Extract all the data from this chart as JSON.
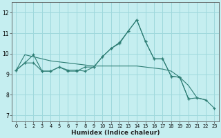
{
  "xlabel": "Humidex (Indice chaleur)",
  "bg_color": "#c5eef0",
  "grid_color": "#9ed8dc",
  "line_color": "#2d7d74",
  "ylim": [
    6.7,
    12.5
  ],
  "xlim": [
    -0.5,
    23.5
  ],
  "yticks": [
    7,
    8,
    9,
    10,
    11,
    12
  ],
  "xticks": [
    0,
    1,
    2,
    3,
    4,
    5,
    6,
    7,
    8,
    9,
    10,
    11,
    12,
    13,
    14,
    15,
    16,
    17,
    18,
    19,
    20,
    21,
    22,
    23
  ],
  "series1_x": [
    0,
    1,
    2,
    3,
    4,
    5,
    6,
    7,
    8,
    9,
    10,
    11,
    12,
    13,
    14,
    15,
    16,
    17,
    18,
    19,
    20,
    21,
    22,
    23
  ],
  "series1_y": [
    9.2,
    9.55,
    9.55,
    9.15,
    9.15,
    9.35,
    9.2,
    9.2,
    9.15,
    9.35,
    9.85,
    10.25,
    10.55,
    11.1,
    11.65,
    10.6,
    9.75,
    9.75,
    8.9,
    8.85,
    7.8,
    7.85,
    7.75,
    7.35
  ],
  "series2_x": [
    0,
    1,
    2,
    3,
    4,
    5,
    6,
    7,
    8,
    9,
    10,
    11,
    12,
    13,
    14,
    15,
    16,
    17,
    18,
    19,
    20,
    21,
    22,
    23
  ],
  "series2_y": [
    9.2,
    9.55,
    9.95,
    9.15,
    9.15,
    9.35,
    9.15,
    9.15,
    9.35,
    9.35,
    9.85,
    10.25,
    10.5,
    11.1,
    11.65,
    10.6,
    9.75,
    9.75,
    8.9,
    8.85,
    7.8,
    null,
    null,
    null
  ],
  "series3_x": [
    0,
    1,
    2,
    3,
    4,
    5,
    6,
    7,
    8,
    9,
    10,
    11,
    12,
    13,
    14,
    15,
    16,
    17,
    18,
    19,
    20,
    21,
    22,
    23
  ],
  "series3_y": [
    9.2,
    9.95,
    9.85,
    9.75,
    9.65,
    9.6,
    9.55,
    9.5,
    9.45,
    9.4,
    9.4,
    9.4,
    9.4,
    9.4,
    9.4,
    9.35,
    9.3,
    9.25,
    9.15,
    8.85,
    8.45,
    7.85,
    7.75,
    null
  ]
}
